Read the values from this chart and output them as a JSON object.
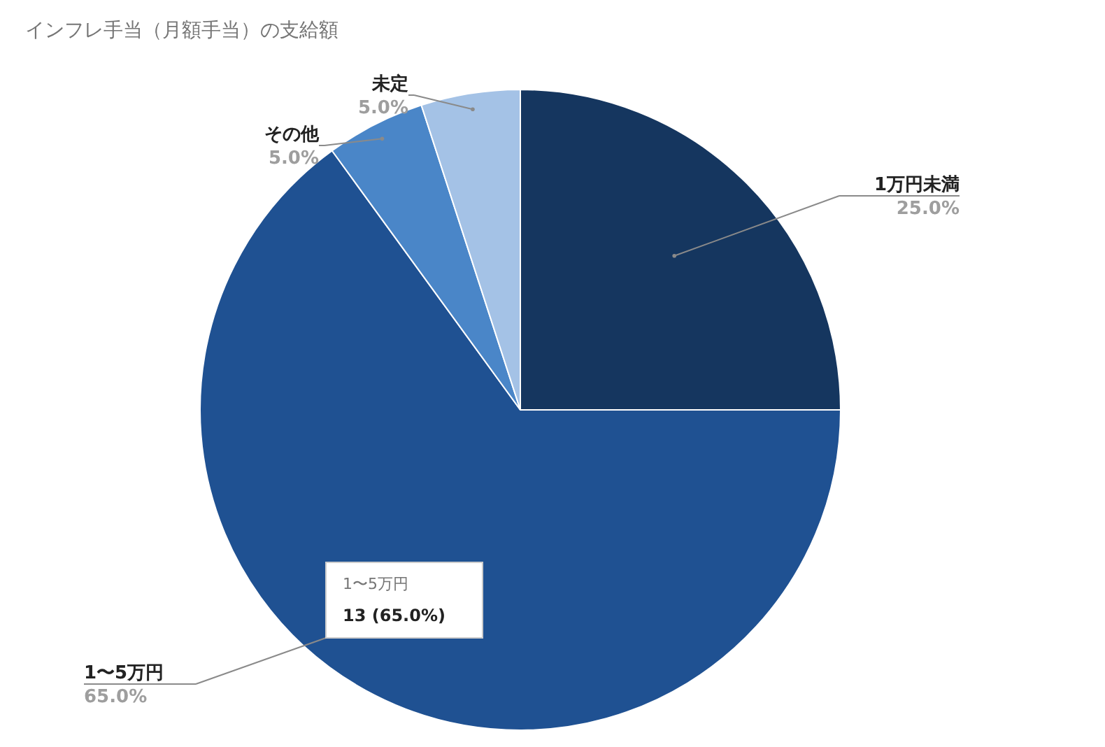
{
  "chart_data": {
    "type": "pie",
    "title": "インフレ手当（月額手当）の支給額",
    "categories": [
      "1万円未満",
      "1〜5万円",
      "その他",
      "未定"
    ],
    "values": [
      25.0,
      65.0,
      5.0,
      5.0
    ],
    "value_labels": [
      "25.0%",
      "65.0%",
      "5.0%",
      "5.0%"
    ],
    "colors": [
      "#15365f",
      "#1f5192",
      "#4a86c8",
      "#a4c2e6"
    ],
    "annotations": [
      "1〜5万円",
      "13 (65.0%)"
    ]
  }
}
